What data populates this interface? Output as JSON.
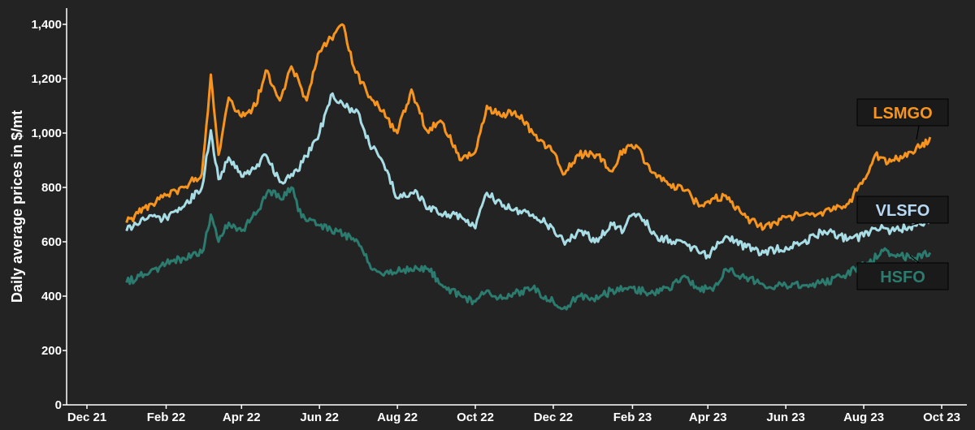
{
  "chart_data": {
    "type": "line",
    "title": "",
    "xlabel": "",
    "ylabel": "Daily average prices in $/mt",
    "ylim": [
      0,
      1400
    ],
    "yticks": [
      0,
      200,
      400,
      600,
      800,
      1000,
      1200,
      1400
    ],
    "ytick_labels": [
      "0",
      "200",
      "400",
      "600",
      "800",
      "1,000",
      "1,200",
      "1,400"
    ],
    "xlim": [
      "2021-12-01",
      "2023-10-01"
    ],
    "xticks": [
      "2021-12-01",
      "2022-02-01",
      "2022-04-01",
      "2022-06-01",
      "2022-08-01",
      "2022-10-01",
      "2022-12-01",
      "2023-02-01",
      "2023-04-01",
      "2023-06-01",
      "2023-08-01",
      "2023-10-01"
    ],
    "xtick_labels": [
      "Dec 21",
      "Feb 22",
      "Apr 22",
      "Jun 22",
      "Aug 22",
      "Oct 22",
      "Dec 22",
      "Feb 23",
      "Apr 23",
      "Jun 23",
      "Aug 23",
      "Oct 23"
    ],
    "grid": false,
    "background": "#232323",
    "series": [
      {
        "name": "LSMGO",
        "color": "#f7941d",
        "label_color": "#f7941d",
        "points": [
          [
            "2022-01-01",
            670
          ],
          [
            "2022-01-10",
            705
          ],
          [
            "2022-01-20",
            740
          ],
          [
            "2022-02-01",
            770
          ],
          [
            "2022-02-15",
            800
          ],
          [
            "2022-03-01",
            850
          ],
          [
            "2022-03-08",
            1215
          ],
          [
            "2022-03-14",
            920
          ],
          [
            "2022-03-22",
            1130
          ],
          [
            "2022-04-01",
            1060
          ],
          [
            "2022-04-12",
            1100
          ],
          [
            "2022-04-20",
            1230
          ],
          [
            "2022-05-01",
            1120
          ],
          [
            "2022-05-10",
            1245
          ],
          [
            "2022-05-22",
            1120
          ],
          [
            "2022-06-01",
            1300
          ],
          [
            "2022-06-10",
            1350
          ],
          [
            "2022-06-20",
            1395
          ],
          [
            "2022-06-28",
            1240
          ],
          [
            "2022-07-08",
            1150
          ],
          [
            "2022-07-20",
            1080
          ],
          [
            "2022-08-01",
            1000
          ],
          [
            "2022-08-12",
            1160
          ],
          [
            "2022-08-24",
            1010
          ],
          [
            "2022-09-05",
            1040
          ],
          [
            "2022-09-20",
            900
          ],
          [
            "2022-10-01",
            930
          ],
          [
            "2022-10-10",
            1100
          ],
          [
            "2022-10-22",
            1060
          ],
          [
            "2022-11-01",
            1080
          ],
          [
            "2022-11-15",
            1000
          ],
          [
            "2022-12-01",
            930
          ],
          [
            "2022-12-10",
            850
          ],
          [
            "2022-12-20",
            920
          ],
          [
            "2023-01-05",
            920
          ],
          [
            "2023-01-15",
            860
          ],
          [
            "2023-01-25",
            940
          ],
          [
            "2023-02-05",
            950
          ],
          [
            "2023-02-15",
            860
          ],
          [
            "2023-03-01",
            810
          ],
          [
            "2023-03-15",
            790
          ],
          [
            "2023-03-25",
            730
          ],
          [
            "2023-04-05",
            760
          ],
          [
            "2023-04-15",
            770
          ],
          [
            "2023-05-01",
            690
          ],
          [
            "2023-05-15",
            650
          ],
          [
            "2023-06-01",
            690
          ],
          [
            "2023-06-20",
            700
          ],
          [
            "2023-07-01",
            710
          ],
          [
            "2023-07-20",
            740
          ],
          [
            "2023-08-01",
            830
          ],
          [
            "2023-08-10",
            920
          ],
          [
            "2023-08-20",
            890
          ],
          [
            "2023-09-05",
            930
          ],
          [
            "2023-09-15",
            950
          ],
          [
            "2023-09-22",
            985
          ]
        ]
      },
      {
        "name": "VLSFO",
        "color": "#a8dde6",
        "label_color": "#b9d9f2",
        "points": [
          [
            "2022-01-01",
            640
          ],
          [
            "2022-01-15",
            680
          ],
          [
            "2022-02-01",
            690
          ],
          [
            "2022-02-15",
            730
          ],
          [
            "2022-03-01",
            800
          ],
          [
            "2022-03-08",
            1010
          ],
          [
            "2022-03-14",
            830
          ],
          [
            "2022-03-22",
            910
          ],
          [
            "2022-04-01",
            840
          ],
          [
            "2022-04-12",
            870
          ],
          [
            "2022-04-20",
            920
          ],
          [
            "2022-05-01",
            820
          ],
          [
            "2022-05-15",
            860
          ],
          [
            "2022-06-01",
            1000
          ],
          [
            "2022-06-10",
            1140
          ],
          [
            "2022-06-20",
            1100
          ],
          [
            "2022-07-01",
            1080
          ],
          [
            "2022-07-10",
            960
          ],
          [
            "2022-07-20",
            900
          ],
          [
            "2022-08-01",
            760
          ],
          [
            "2022-08-15",
            790
          ],
          [
            "2022-08-25",
            720
          ],
          [
            "2022-09-10",
            700
          ],
          [
            "2022-09-25",
            680
          ],
          [
            "2022-10-01",
            650
          ],
          [
            "2022-10-10",
            780
          ],
          [
            "2022-10-22",
            730
          ],
          [
            "2022-11-01",
            720
          ],
          [
            "2022-11-15",
            700
          ],
          [
            "2022-12-01",
            650
          ],
          [
            "2022-12-10",
            590
          ],
          [
            "2022-12-22",
            640
          ],
          [
            "2023-01-05",
            600
          ],
          [
            "2023-01-15",
            670
          ],
          [
            "2023-01-25",
            640
          ],
          [
            "2023-02-01",
            700
          ],
          [
            "2023-02-10",
            680
          ],
          [
            "2023-02-20",
            620
          ],
          [
            "2023-03-05",
            600
          ],
          [
            "2023-03-20",
            580
          ],
          [
            "2023-04-01",
            550
          ],
          [
            "2023-04-15",
            620
          ],
          [
            "2023-05-01",
            580
          ],
          [
            "2023-05-15",
            560
          ],
          [
            "2023-06-01",
            580
          ],
          [
            "2023-06-15",
            600
          ],
          [
            "2023-07-01",
            640
          ],
          [
            "2023-07-20",
            610
          ],
          [
            "2023-08-01",
            620
          ],
          [
            "2023-08-10",
            650
          ],
          [
            "2023-08-25",
            640
          ],
          [
            "2023-09-10",
            660
          ],
          [
            "2023-09-22",
            680
          ]
        ]
      },
      {
        "name": "HSFO",
        "color": "#2b7b6f",
        "label_color": "#2b7b6f",
        "points": [
          [
            "2022-01-01",
            450
          ],
          [
            "2022-01-15",
            480
          ],
          [
            "2022-02-01",
            520
          ],
          [
            "2022-02-15",
            540
          ],
          [
            "2022-03-01",
            560
          ],
          [
            "2022-03-08",
            700
          ],
          [
            "2022-03-14",
            600
          ],
          [
            "2022-03-22",
            670
          ],
          [
            "2022-04-01",
            640
          ],
          [
            "2022-04-12",
            700
          ],
          [
            "2022-04-22",
            790
          ],
          [
            "2022-05-01",
            760
          ],
          [
            "2022-05-10",
            800
          ],
          [
            "2022-05-18",
            690
          ],
          [
            "2022-06-01",
            660
          ],
          [
            "2022-06-15",
            640
          ],
          [
            "2022-07-01",
            600
          ],
          [
            "2022-07-10",
            520
          ],
          [
            "2022-07-20",
            480
          ],
          [
            "2022-08-01",
            490
          ],
          [
            "2022-08-15",
            510
          ],
          [
            "2022-08-25",
            500
          ],
          [
            "2022-09-05",
            440
          ],
          [
            "2022-09-20",
            400
          ],
          [
            "2022-10-01",
            380
          ],
          [
            "2022-10-10",
            420
          ],
          [
            "2022-10-22",
            390
          ],
          [
            "2022-11-01",
            410
          ],
          [
            "2022-11-15",
            430
          ],
          [
            "2022-12-01",
            380
          ],
          [
            "2022-12-10",
            360
          ],
          [
            "2022-12-22",
            400
          ],
          [
            "2023-01-05",
            390
          ],
          [
            "2023-01-15",
            420
          ],
          [
            "2023-02-01",
            430
          ],
          [
            "2023-02-15",
            410
          ],
          [
            "2023-03-01",
            430
          ],
          [
            "2023-03-15",
            470
          ],
          [
            "2023-03-25",
            430
          ],
          [
            "2023-04-05",
            420
          ],
          [
            "2023-04-15",
            500
          ],
          [
            "2023-05-01",
            470
          ],
          [
            "2023-05-15",
            440
          ],
          [
            "2023-06-01",
            440
          ],
          [
            "2023-06-15",
            440
          ],
          [
            "2023-07-01",
            450
          ],
          [
            "2023-07-15",
            470
          ],
          [
            "2023-07-25",
            500
          ],
          [
            "2023-08-05",
            520
          ],
          [
            "2023-08-15",
            570
          ],
          [
            "2023-08-25",
            550
          ],
          [
            "2023-09-10",
            540
          ],
          [
            "2023-09-22",
            560
          ]
        ]
      }
    ],
    "annotations": [
      {
        "text": "LSMGO",
        "series": "LSMGO"
      },
      {
        "text": "VLSFO",
        "series": "VLSFO"
      },
      {
        "text": "HSFO",
        "series": "HSFO"
      }
    ]
  }
}
